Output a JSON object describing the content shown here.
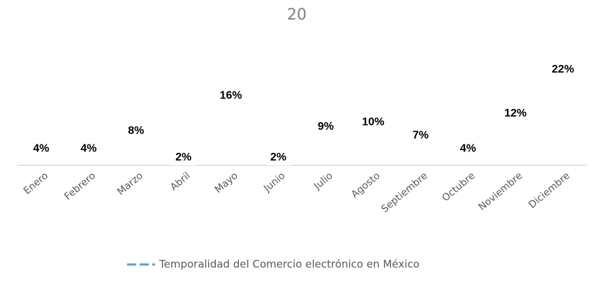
{
  "chart_data": {
    "type": "line",
    "title": "20",
    "categories": [
      "Enero",
      "Febrero",
      "Marzo",
      "Abril",
      "Mayo",
      "Junio",
      "Julio",
      "Agosto",
      "Septiembre",
      "Octubre",
      "Noviembre",
      "Diciembre"
    ],
    "series": [
      {
        "name": "Temporalidad del Comercio electrónico en México",
        "color": "#5b9bd5",
        "values": [
          4,
          4,
          8,
          2,
          16,
          2,
          9,
          10,
          7,
          4,
          12,
          22
        ],
        "value_labels": [
          "4%",
          "4%",
          "8%",
          "2%",
          "16%",
          "2%",
          "9%",
          "10%",
          "7%",
          "4%",
          "12%",
          "22%"
        ]
      }
    ],
    "ylim": [
      0,
      30
    ],
    "legend": "bottom"
  }
}
